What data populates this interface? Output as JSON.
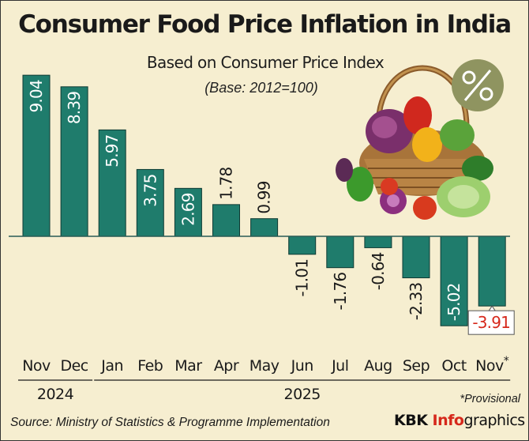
{
  "chart_data": {
    "type": "bar",
    "title": "Consumer Food Price Inflation in India",
    "subtitle": "Based on Consumer Price Index",
    "base_note": "(Base: 2012=100)",
    "categories": [
      "Nov",
      "Dec",
      "Jan",
      "Feb",
      "Mar",
      "Apr",
      "May",
      "Jun",
      "Jul",
      "Aug",
      "Sep",
      "Oct",
      "Nov*"
    ],
    "values": [
      9.04,
      8.39,
      5.97,
      3.75,
      2.69,
      1.78,
      0.99,
      -1.01,
      -1.76,
      -0.64,
      -2.33,
      -5.02,
      -3.91
    ],
    "value_labels": [
      "9.04",
      "8.39",
      "5.97",
      "3.75",
      "2.69",
      "1.78",
      "0.99",
      "-1.01",
      "-1.76",
      "-0.64",
      "-2.33",
      "-5.02",
      "-3.91"
    ],
    "year_groups": [
      {
        "label": "2024",
        "from": 0,
        "to": 1
      },
      {
        "label": "2025",
        "from": 2,
        "to": 12
      }
    ],
    "highlight_index": 12,
    "ylim": [
      -5.5,
      9.3
    ],
    "grid": false,
    "xlabel": "",
    "ylabel": ""
  },
  "colors": {
    "background": "#f6eed0",
    "bar_fill": "#1f7c6c",
    "bar_stroke": "#0e3a33",
    "highlight_text": "#d6281b",
    "badge_bg": "#8f9460"
  },
  "footnote": "*Provisional",
  "source": "Source: Ministry of Statistics & Programme Implementation",
  "brand": {
    "kbk": "KBK ",
    "info": "Info",
    "graphics": "graphics"
  },
  "icons": {
    "badge": "percent-badge-icon",
    "illustration": "vegetable-basket-icon"
  }
}
